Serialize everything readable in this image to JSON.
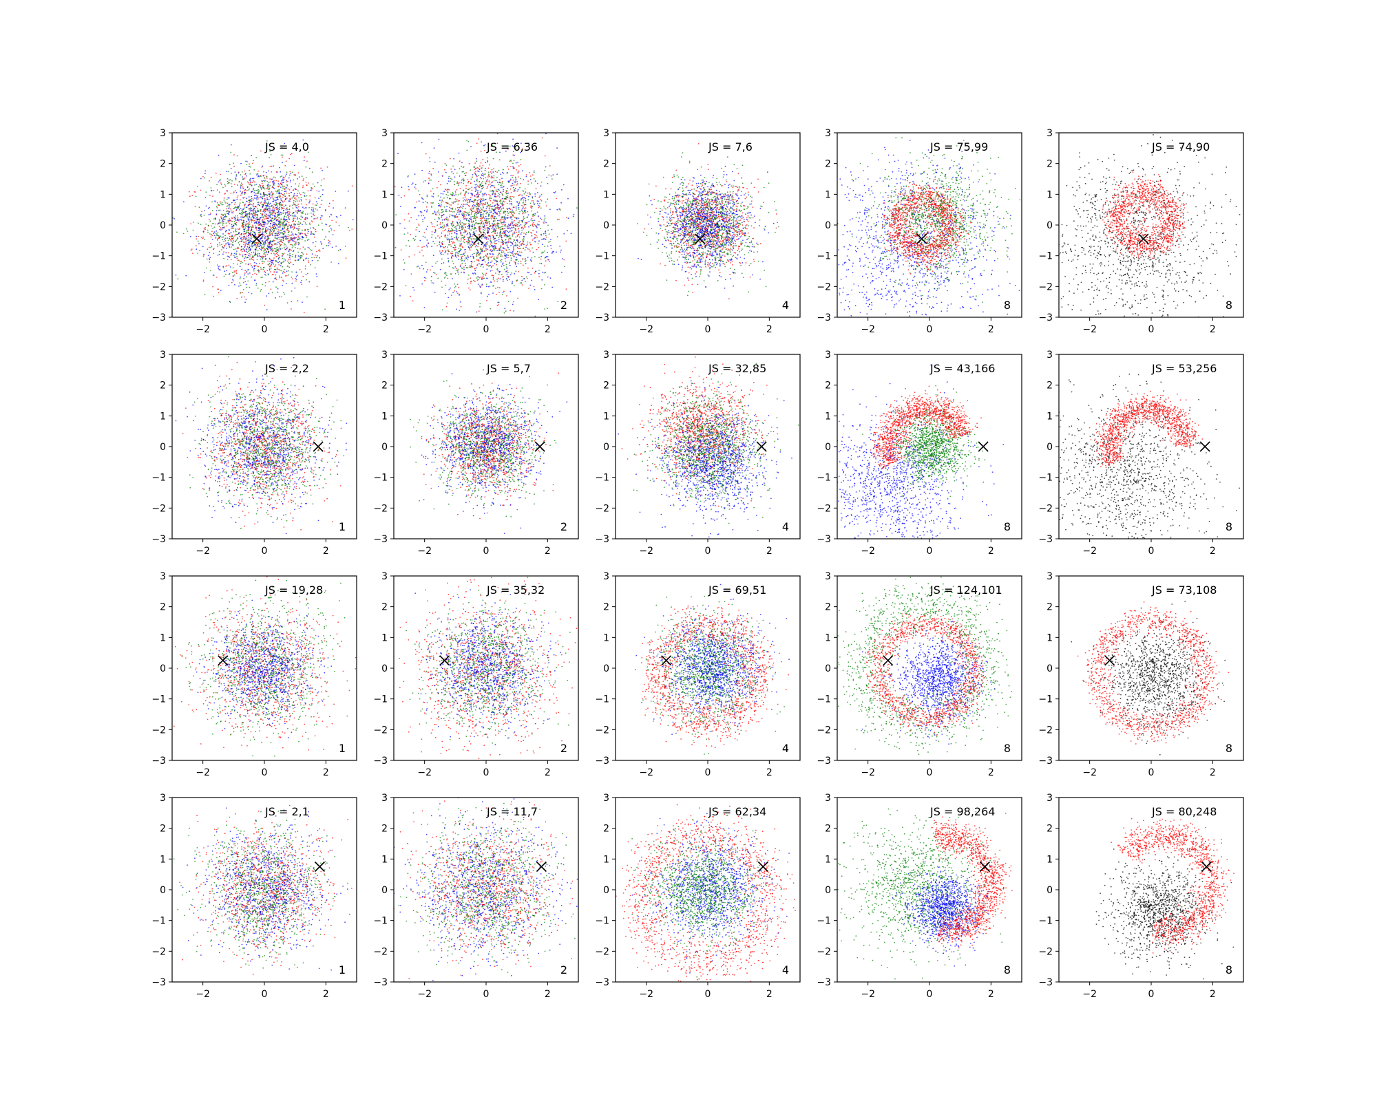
{
  "figure": {
    "colors": {
      "red": "#ff0000",
      "green": "#008000",
      "blue": "#0000ff",
      "black": "#000000",
      "marker": "#000000"
    }
  },
  "chart_data": [
    {
      "type": "scatter",
      "js_label": "JS = 4,0",
      "k_label": "1",
      "xlim": [
        -3,
        3
      ],
      "ylim": [
        -3,
        3
      ],
      "x_ticks": [
        -2,
        0,
        2
      ],
      "y_ticks": [
        3,
        2,
        1,
        0,
        -1,
        -2,
        -3
      ],
      "marker": {
        "x": -0.25,
        "y": -0.45
      },
      "pattern": "mixed",
      "series": [
        {
          "color": "red",
          "spread": 0.95
        },
        {
          "color": "green",
          "spread": 0.95
        },
        {
          "color": "blue",
          "spread": 0.95
        }
      ]
    },
    {
      "type": "scatter",
      "js_label": "JS = 6,36",
      "k_label": "2",
      "xlim": [
        -3,
        3
      ],
      "ylim": [
        -3,
        3
      ],
      "x_ticks": [
        -2,
        0,
        2
      ],
      "y_ticks": [
        3,
        2,
        1,
        0,
        -1,
        -2,
        -3
      ],
      "marker": {
        "x": -0.25,
        "y": -0.45
      },
      "pattern": "mixed",
      "series": [
        {
          "color": "red",
          "spread": 1.0
        },
        {
          "color": "green",
          "spread": 1.0
        },
        {
          "color": "blue",
          "spread": 1.15
        }
      ]
    },
    {
      "type": "scatter",
      "js_label": "JS = 7,6",
      "k_label": "4",
      "xlim": [
        -3,
        3
      ],
      "ylim": [
        -3,
        3
      ],
      "x_ticks": [
        -2,
        0,
        2
      ],
      "y_ticks": [
        3,
        2,
        1,
        0,
        -1,
        -2,
        -3
      ],
      "marker": {
        "x": -0.25,
        "y": -0.45
      },
      "pattern": "mixed",
      "series": [
        {
          "color": "red",
          "spread": 0.7
        },
        {
          "color": "green",
          "spread": 0.7
        },
        {
          "color": "blue",
          "spread": 0.7
        }
      ]
    },
    {
      "type": "scatter",
      "js_label": "JS = 75,99",
      "k_label": "8",
      "xlim": [
        -3,
        3
      ],
      "ylim": [
        -3,
        3
      ],
      "x_ticks": [
        -2,
        0,
        2
      ],
      "y_ticks": [
        3,
        2,
        1,
        0,
        -1,
        -2,
        -3
      ],
      "marker": {
        "x": -0.25,
        "y": -0.45
      },
      "pattern": "ring",
      "series": [
        {
          "color": "blue",
          "spread": 1.4,
          "cx": -0.6,
          "cy": -0.8
        },
        {
          "color": "green",
          "spread": 0.9,
          "cx": 0.3,
          "cy": 0.2
        },
        {
          "color": "red",
          "ring": 0.9,
          "width": 0.25,
          "cx": -0.2,
          "cy": 0.0
        }
      ]
    },
    {
      "type": "scatter",
      "js_label": "JS = 74,90",
      "k_label": "8",
      "xlim": [
        -3,
        3
      ],
      "ylim": [
        -3,
        3
      ],
      "x_ticks": [
        -2,
        0,
        2
      ],
      "y_ticks": [
        3,
        2,
        1,
        0,
        -1,
        -2,
        -3
      ],
      "marker": {
        "x": -0.25,
        "y": -0.45
      },
      "pattern": "ring",
      "series": [
        {
          "color": "black",
          "spread": 1.4,
          "cx": -0.6,
          "cy": -0.6
        },
        {
          "color": "red",
          "ring": 0.9,
          "width": 0.25,
          "cx": -0.2,
          "cy": 0.2
        }
      ]
    },
    {
      "type": "scatter",
      "js_label": "JS = 2,2",
      "k_label": "1",
      "xlim": [
        -3,
        3
      ],
      "ylim": [
        -3,
        3
      ],
      "x_ticks": [
        -2,
        0,
        2
      ],
      "y_ticks": [
        3,
        2,
        1,
        0,
        -1,
        -2,
        -3
      ],
      "marker": {
        "x": 1.75,
        "y": 0.0
      },
      "pattern": "mixed",
      "series": [
        {
          "color": "red",
          "spread": 0.9
        },
        {
          "color": "green",
          "spread": 0.9
        },
        {
          "color": "blue",
          "spread": 0.95
        }
      ]
    },
    {
      "type": "scatter",
      "js_label": "JS = 5,7",
      "k_label": "2",
      "xlim": [
        -3,
        3
      ],
      "ylim": [
        -3,
        3
      ],
      "x_ticks": [
        -2,
        0,
        2
      ],
      "y_ticks": [
        3,
        2,
        1,
        0,
        -1,
        -2,
        -3
      ],
      "marker": {
        "x": 1.75,
        "y": 0.0
      },
      "pattern": "mixed",
      "series": [
        {
          "color": "red",
          "spread": 0.75
        },
        {
          "color": "green",
          "spread": 0.8
        },
        {
          "color": "blue",
          "spread": 0.8
        }
      ]
    },
    {
      "type": "scatter",
      "js_label": "JS = 32,85",
      "k_label": "4",
      "xlim": [
        -3,
        3
      ],
      "ylim": [
        -3,
        3
      ],
      "x_ticks": [
        -2,
        0,
        2
      ],
      "y_ticks": [
        3,
        2,
        1,
        0,
        -1,
        -2,
        -3
      ],
      "marker": {
        "x": 1.75,
        "y": 0.0
      },
      "pattern": "ring",
      "series": [
        {
          "color": "red",
          "spread": 0.8,
          "cx": -0.2,
          "cy": 0.5
        },
        {
          "color": "green",
          "spread": 0.8,
          "cx": 0.0,
          "cy": 0.0
        },
        {
          "color": "blue",
          "spread": 0.8,
          "cx": 0.2,
          "cy": -0.5
        }
      ]
    },
    {
      "type": "scatter",
      "js_label": "JS = 43,166",
      "k_label": "8",
      "xlim": [
        -3,
        3
      ],
      "ylim": [
        -3,
        3
      ],
      "x_ticks": [
        -2,
        0,
        2
      ],
      "y_ticks": [
        3,
        2,
        1,
        0,
        -1,
        -2,
        -3
      ],
      "marker": {
        "x": 1.75,
        "y": 0.0
      },
      "pattern": "ring",
      "series": [
        {
          "color": "blue",
          "spread": 1.1,
          "cx": -1.2,
          "cy": -1.2
        },
        {
          "color": "green",
          "spread": 0.55,
          "cx": 0.1,
          "cy": 0.0
        },
        {
          "color": "red",
          "ring": 1.25,
          "width": 0.25,
          "cx": -0.1,
          "cy": 0.0,
          "arc": [
            0.3,
            3.6
          ]
        }
      ]
    },
    {
      "type": "scatter",
      "js_label": "JS = 53,256",
      "k_label": "8",
      "xlim": [
        -3,
        3
      ],
      "ylim": [
        -3,
        3
      ],
      "x_ticks": [
        -2,
        0,
        2
      ],
      "y_ticks": [
        3,
        2,
        1,
        0,
        -1,
        -2,
        -3
      ],
      "marker": {
        "x": 1.75,
        "y": 0.0
      },
      "pattern": "ring",
      "series": [
        {
          "color": "black",
          "spread": 1.3,
          "cx": -0.8,
          "cy": -1.0
        },
        {
          "color": "red",
          "ring": 1.25,
          "width": 0.22,
          "cx": -0.1,
          "cy": 0.0,
          "arc": [
            0.0,
            3.6
          ]
        }
      ]
    },
    {
      "type": "scatter",
      "js_label": "JS = 19,28",
      "k_label": "1",
      "xlim": [
        -3,
        3
      ],
      "ylim": [
        -3,
        3
      ],
      "x_ticks": [
        -2,
        0,
        2
      ],
      "y_ticks": [
        3,
        2,
        1,
        0,
        -1,
        -2,
        -3
      ],
      "marker": {
        "x": -1.35,
        "y": 0.25
      },
      "pattern": "mixed",
      "series": [
        {
          "color": "red",
          "spread": 1.05
        },
        {
          "color": "green",
          "spread": 1.05
        },
        {
          "color": "blue",
          "spread": 0.75
        }
      ]
    },
    {
      "type": "scatter",
      "js_label": "JS = 35,32",
      "k_label": "2",
      "xlim": [
        -3,
        3
      ],
      "ylim": [
        -3,
        3
      ],
      "x_ticks": [
        -2,
        0,
        2
      ],
      "y_ticks": [
        3,
        2,
        1,
        0,
        -1,
        -2,
        -3
      ],
      "marker": {
        "x": -1.35,
        "y": 0.25
      },
      "pattern": "mixed",
      "series": [
        {
          "color": "red",
          "spread": 1.15
        },
        {
          "color": "green",
          "spread": 0.95
        },
        {
          "color": "blue",
          "spread": 0.85
        }
      ]
    },
    {
      "type": "scatter",
      "js_label": "JS = 69,51",
      "k_label": "4",
      "xlim": [
        -3,
        3
      ],
      "ylim": [
        -3,
        3
      ],
      "x_ticks": [
        -2,
        0,
        2
      ],
      "y_ticks": [
        3,
        2,
        1,
        0,
        -1,
        -2,
        -3
      ],
      "marker": {
        "x": -1.35,
        "y": 0.25
      },
      "pattern": "ring",
      "series": [
        {
          "color": "green",
          "spread": 0.8,
          "cx": 0.0,
          "cy": -0.1
        },
        {
          "color": "blue",
          "spread": 0.75,
          "cx": 0.2,
          "cy": 0.0
        },
        {
          "color": "red",
          "ring": 1.6,
          "width": 0.35,
          "cx": 0.0,
          "cy": -0.2
        }
      ]
    },
    {
      "type": "scatter",
      "js_label": "JS = 124,101",
      "k_label": "8",
      "xlim": [
        -3,
        3
      ],
      "ylim": [
        -3,
        3
      ],
      "x_ticks": [
        -2,
        0,
        2
      ],
      "y_ticks": [
        3,
        2,
        1,
        0,
        -1,
        -2,
        -3
      ],
      "marker": {
        "x": -1.35,
        "y": 0.25
      },
      "pattern": "ring",
      "series": [
        {
          "color": "blue",
          "spread": 0.65,
          "cx": 0.3,
          "cy": -0.4
        },
        {
          "color": "green",
          "ring": 2.0,
          "width": 0.45,
          "cx": -0.2,
          "cy": 0.1
        },
        {
          "color": "red",
          "ring": 1.55,
          "width": 0.2,
          "cx": -0.1,
          "cy": -0.1
        }
      ]
    },
    {
      "type": "scatter",
      "js_label": "JS = 73,108",
      "k_label": "8",
      "xlim": [
        -3,
        3
      ],
      "ylim": [
        -3,
        3
      ],
      "x_ticks": [
        -2,
        0,
        2
      ],
      "y_ticks": [
        3,
        2,
        1,
        0,
        -1,
        -2,
        -3
      ],
      "marker": {
        "x": -1.35,
        "y": 0.25
      },
      "pattern": "ring",
      "series": [
        {
          "color": "black",
          "spread": 0.75,
          "cx": 0.2,
          "cy": -0.3
        },
        {
          "color": "red",
          "ring": 1.75,
          "width": 0.22,
          "cx": 0.0,
          "cy": -0.2
        }
      ]
    },
    {
      "type": "scatter",
      "js_label": "JS = 2,1",
      "k_label": "1",
      "xlim": [
        -3,
        3
      ],
      "ylim": [
        -3,
        3
      ],
      "x_ticks": [
        -2,
        0,
        2
      ],
      "y_ticks": [
        3,
        2,
        1,
        0,
        -1,
        -2,
        -3
      ],
      "marker": {
        "x": 1.8,
        "y": 0.75
      },
      "pattern": "mixed",
      "series": [
        {
          "color": "red",
          "spread": 0.95
        },
        {
          "color": "green",
          "spread": 0.95
        },
        {
          "color": "blue",
          "spread": 0.95
        }
      ]
    },
    {
      "type": "scatter",
      "js_label": "JS = 11,7",
      "k_label": "2",
      "xlim": [
        -3,
        3
      ],
      "ylim": [
        -3,
        3
      ],
      "x_ticks": [
        -2,
        0,
        2
      ],
      "y_ticks": [
        3,
        2,
        1,
        0,
        -1,
        -2,
        -3
      ],
      "marker": {
        "x": 1.8,
        "y": 0.75
      },
      "pattern": "mixed",
      "series": [
        {
          "color": "red",
          "spread": 1.05
        },
        {
          "color": "green",
          "spread": 1.05
        },
        {
          "color": "blue",
          "spread": 1.1
        }
      ]
    },
    {
      "type": "scatter",
      "js_label": "JS = 62,34",
      "k_label": "4",
      "xlim": [
        -3,
        3
      ],
      "ylim": [
        -3,
        3
      ],
      "x_ticks": [
        -2,
        0,
        2
      ],
      "y_ticks": [
        3,
        2,
        1,
        0,
        -1,
        -2,
        -3
      ],
      "marker": {
        "x": 1.8,
        "y": 0.75
      },
      "pattern": "ring",
      "series": [
        {
          "color": "blue",
          "spread": 0.85,
          "cx": 0.1,
          "cy": 0.0
        },
        {
          "color": "green",
          "spread": 0.8,
          "cx": -0.2,
          "cy": 0.0
        },
        {
          "color": "red",
          "ring": 2.1,
          "width": 0.4,
          "cx": -0.1,
          "cy": -0.3
        }
      ]
    },
    {
      "type": "scatter",
      "js_label": "JS = 98,264",
      "k_label": "8",
      "xlim": [
        -3,
        3
      ],
      "ylim": [
        -3,
        3
      ],
      "x_ticks": [
        -2,
        0,
        2
      ],
      "y_ticks": [
        3,
        2,
        1,
        0,
        -1,
        -2,
        -3
      ],
      "marker": {
        "x": 1.8,
        "y": 0.75
      },
      "pattern": "ring",
      "series": [
        {
          "color": "green",
          "spread": 1.0,
          "cx": -0.5,
          "cy": 0.1
        },
        {
          "color": "blue",
          "spread": 0.55,
          "cx": 0.5,
          "cy": -0.6
        },
        {
          "color": "red",
          "ring": 1.55,
          "width": 0.25,
          "cx": 0.5,
          "cy": 0.2,
          "arc": [
            -1.7,
            1.8
          ]
        }
      ]
    },
    {
      "type": "scatter",
      "js_label": "JS = 80,248",
      "k_label": "8",
      "xlim": [
        -3,
        3
      ],
      "ylim": [
        -3,
        3
      ],
      "x_ticks": [
        -2,
        0,
        2
      ],
      "y_ticks": [
        3,
        2,
        1,
        0,
        -1,
        -2,
        -3
      ],
      "marker": {
        "x": 1.8,
        "y": 0.75
      },
      "pattern": "ring",
      "series": [
        {
          "color": "black",
          "spread": 0.75,
          "cx": 0.3,
          "cy": -0.7
        },
        {
          "color": "red",
          "ring": 1.6,
          "width": 0.25,
          "cx": 0.4,
          "cy": 0.2,
          "arc": [
            -1.8,
            2.5
          ]
        }
      ]
    }
  ]
}
